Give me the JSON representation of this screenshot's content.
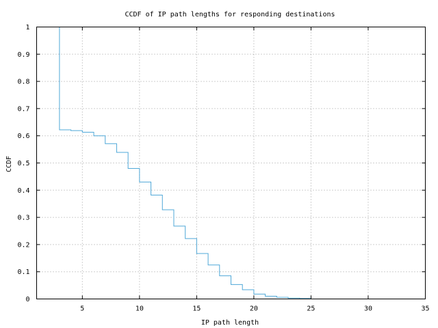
{
  "chart_data": {
    "type": "line",
    "step": true,
    "title": "CCDF of IP path lengths for responding destinations",
    "xlabel": "IP path length",
    "ylabel": "CCDF",
    "xlim": [
      1,
      35
    ],
    "ylim": [
      0,
      1
    ],
    "xticks": [
      5,
      10,
      15,
      20,
      25,
      30,
      35
    ],
    "yticks": [
      0,
      0.1,
      0.2,
      0.3,
      0.4,
      0.5,
      0.6,
      0.7,
      0.8,
      0.9,
      1
    ],
    "ytick_labels": [
      "0",
      "0.1",
      "0.2",
      "0.3",
      "0.4",
      "0.5",
      "0.6",
      "0.7",
      "0.8",
      "0.9",
      "1"
    ],
    "xtick_labels": [
      "5",
      "10",
      "15",
      "20",
      "25",
      "30",
      "35"
    ],
    "grid": true,
    "line_color": "#4fa8d8",
    "series": [
      {
        "x": [
          2,
          3,
          4,
          5,
          6,
          7,
          8,
          9,
          10,
          11,
          12,
          13,
          14,
          15,
          16,
          17,
          18,
          19,
          20,
          21,
          22,
          23,
          24,
          25
        ],
        "y": [
          1.0,
          0.622,
          0.619,
          0.613,
          0.6,
          0.571,
          0.539,
          0.48,
          0.43,
          0.382,
          0.328,
          0.268,
          0.222,
          0.167,
          0.125,
          0.085,
          0.053,
          0.034,
          0.018,
          0.01,
          0.006,
          0.003,
          0.002,
          0.0
        ]
      }
    ]
  }
}
